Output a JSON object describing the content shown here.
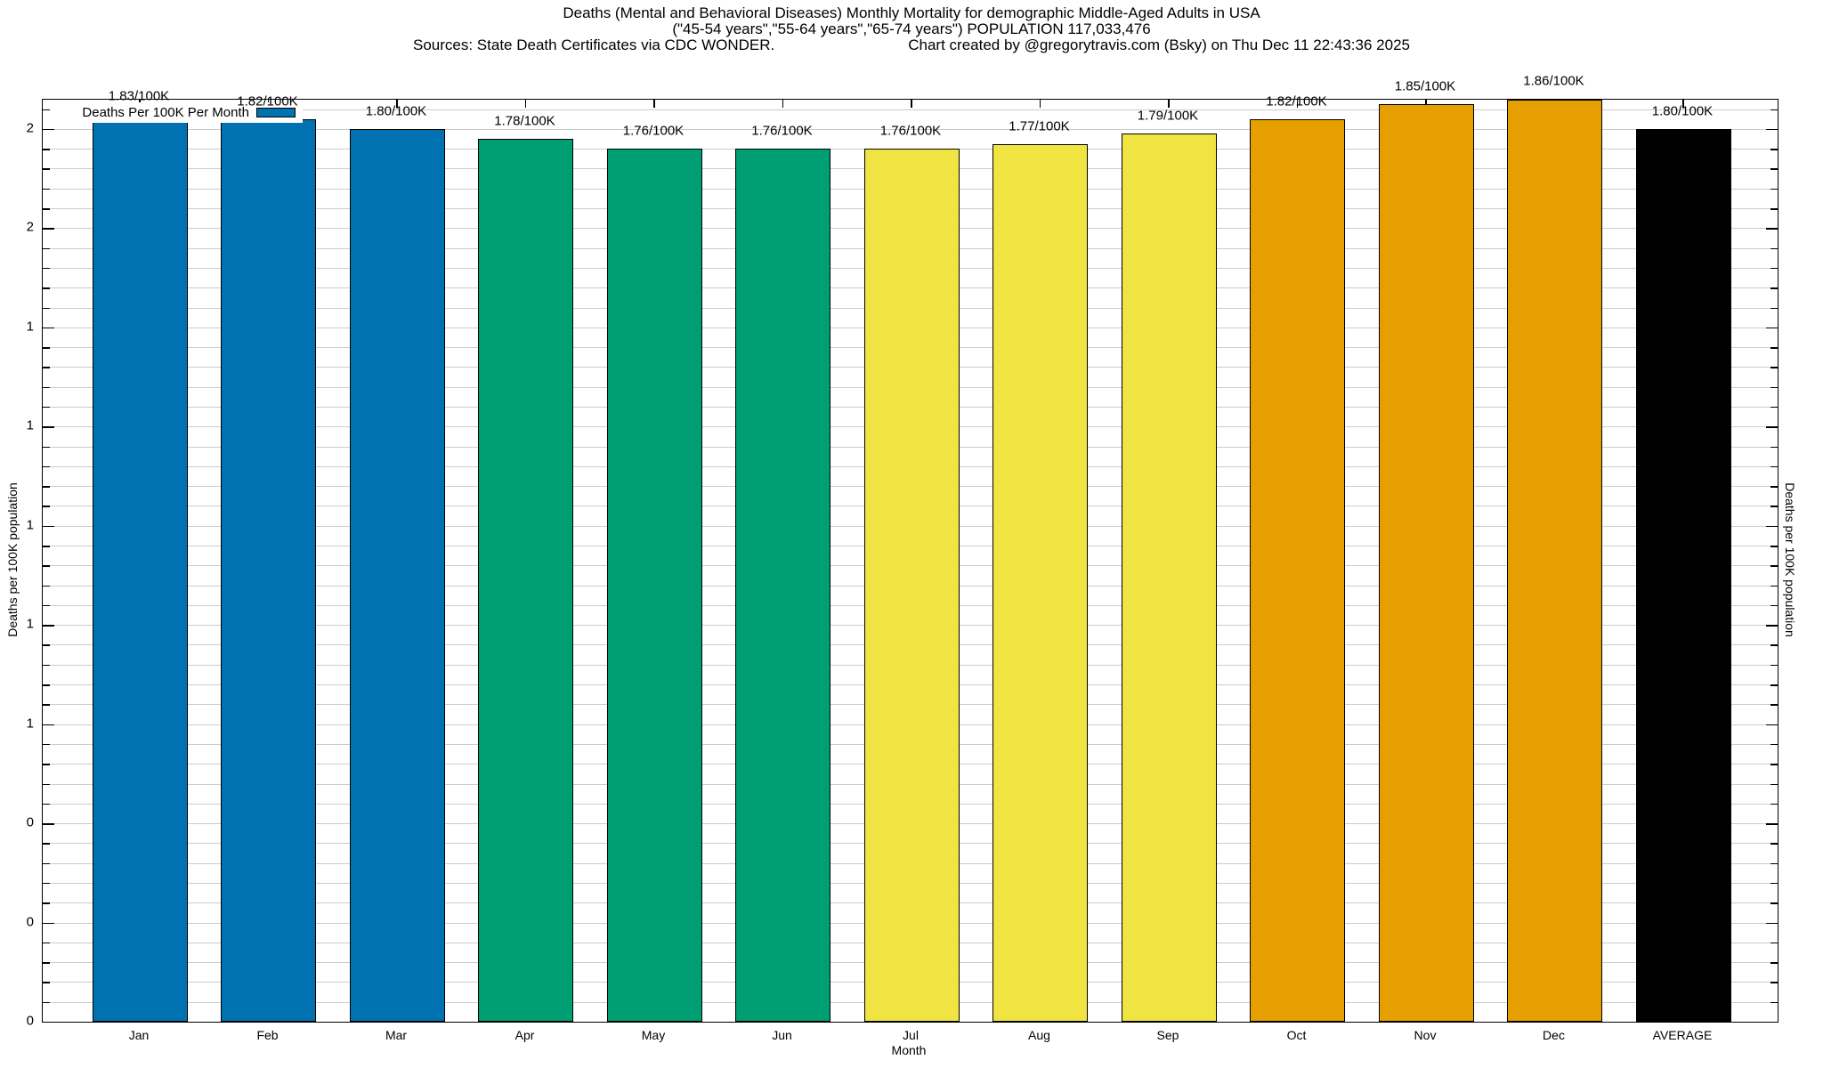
{
  "title": {
    "line1": "Deaths (Mental and Behavioral Diseases) Monthly Mortality for demographic Middle-Aged Adults in USA",
    "line2": "(\"45-54 years\",\"55-64 years\",\"65-74 years\") POPULATION 117,033,476",
    "line3_left": "Sources: State Death Certificates via CDC WONDER.",
    "line3_right": "Chart created by @gregorytravis.com (Bsky) on Thu Dec 11 22:43:36 2025"
  },
  "axes": {
    "x_label": "Month",
    "y_label_left": "Deaths per 100K population",
    "y_label_right": "Deaths per 100K population"
  },
  "legend": {
    "label": "Deaths Per 100K Per Month",
    "swatch_color": "#0072B2"
  },
  "colors": {
    "blue": "#0072B2",
    "green": "#009E73",
    "yellow": "#F0E442",
    "orange": "#E69F00",
    "black": "#000000",
    "gridline": "#cccccc"
  },
  "chart_data": {
    "type": "bar",
    "title": "Deaths (Mental and Behavioral Diseases) Monthly Mortality for demographic Middle-Aged Adults in USA",
    "xlabel": "Month",
    "ylabel": "Deaths per 100K population",
    "categories": [
      "Jan",
      "Feb",
      "Mar",
      "Apr",
      "May",
      "Jun",
      "Jul",
      "Aug",
      "Sep",
      "Oct",
      "Nov",
      "Dec",
      "AVERAGE"
    ],
    "values": [
      1.83,
      1.82,
      1.8,
      1.78,
      1.76,
      1.76,
      1.76,
      1.77,
      1.79,
      1.82,
      1.85,
      1.86,
      1.8
    ],
    "bar_labels": [
      "1.83/100K",
      "1.82/100K",
      "1.80/100K",
      "1.78/100K",
      "1.76/100K",
      "1.76/100K",
      "1.76/100K",
      "1.77/100K",
      "1.79/100K",
      "1.82/100K",
      "1.85/100K",
      "1.86/100K",
      "1.80/100K"
    ],
    "bar_colors": [
      "#0072B2",
      "#0072B2",
      "#0072B2",
      "#009E73",
      "#009E73",
      "#009E73",
      "#F0E442",
      "#F0E442",
      "#F0E442",
      "#E69F00",
      "#E69F00",
      "#E69F00",
      "#000000"
    ],
    "ylim": [
      0,
      1.859
    ],
    "y_major_tick_step": 0.2,
    "y_minor_tick_step": 0.04,
    "y_tick_labels": [
      "0",
      "0",
      "0",
      "1",
      "1",
      "1",
      "1",
      "1",
      "2",
      "2"
    ],
    "grid": "minor horizontal",
    "legend_entries": [
      "Deaths Per 100K Per Month"
    ],
    "legend_position": "top-left inside"
  }
}
